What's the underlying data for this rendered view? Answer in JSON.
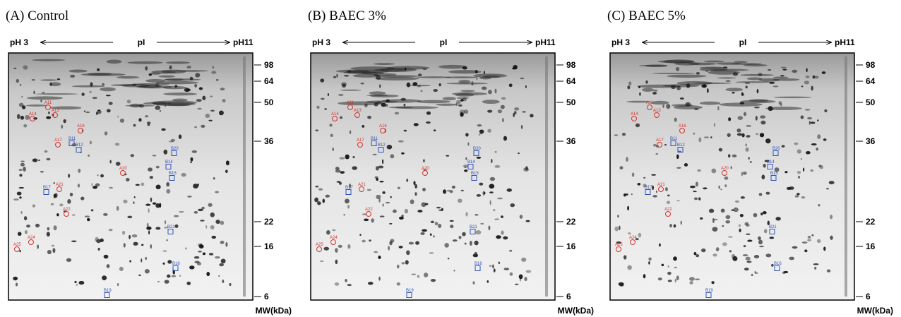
{
  "panels": [
    {
      "title": "(A) Control",
      "ph_left": "pH 3",
      "pi": "pI",
      "ph_right": "pH11",
      "mw_labels": [
        "98",
        "64",
        "50",
        "36",
        "22",
        "16",
        "6"
      ],
      "mw_unit": "MW(kDa)",
      "spots": [
        "A11",
        "A13",
        "A14",
        "A16",
        "A17",
        "A20",
        "A21",
        "A22",
        "A24",
        "A25",
        "B11",
        "B12",
        "B14",
        "B15",
        "B16",
        "B17",
        "B19",
        "B20",
        "B21"
      ]
    },
    {
      "title": "(B) BAEC 3%",
      "ph_left": "pH 3",
      "pi": "pI",
      "ph_right": "pH11",
      "mw_labels": [
        "98",
        "64",
        "50",
        "36",
        "22",
        "16",
        "6"
      ],
      "mw_unit": "MW(kDa)",
      "spots": [
        "A11",
        "A13",
        "A14",
        "A16",
        "A17",
        "A20",
        "A21",
        "A22",
        "A24",
        "A25",
        "B11",
        "B12",
        "B14",
        "B15",
        "B16",
        "B17",
        "B19",
        "B20",
        "B21"
      ]
    },
    {
      "title": "(C) BAEC 5%",
      "ph_left": "pH 3",
      "pi": "pI",
      "ph_right": "pH11",
      "mw_labels": [
        "98",
        "64",
        "50",
        "36",
        "22",
        "16",
        "6"
      ],
      "mw_unit": "MW(kDa)",
      "spots": [
        "A11",
        "A13",
        "A14",
        "A16",
        "A17",
        "A20",
        "A21",
        "A22",
        "A24",
        "A25",
        "B11",
        "B12",
        "B14",
        "B15",
        "B16",
        "B17",
        "B19",
        "B20",
        "B21"
      ]
    }
  ]
}
